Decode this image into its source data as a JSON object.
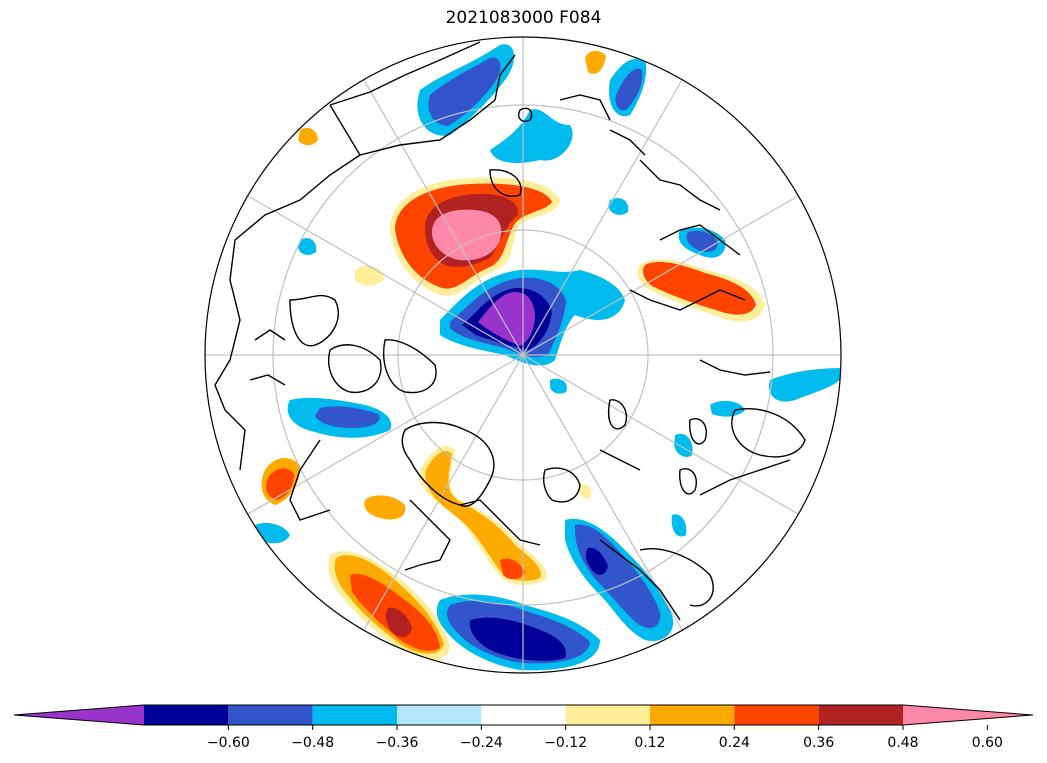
{
  "title": "2021083000 F084",
  "projection": "north-polar-stereographic",
  "colorbar": {
    "extend": "both",
    "bins": [
      {
        "color": "#9933cc"
      },
      {
        "color": "#000099"
      },
      {
        "color": "#3355cc"
      },
      {
        "color": "#00bbee"
      },
      {
        "color": "#b3e5fc"
      },
      {
        "color": "#ffffff"
      },
      {
        "color": "#ffee99"
      },
      {
        "color": "#ffaa00"
      },
      {
        "color": "#ff4400"
      },
      {
        "color": "#b22222"
      },
      {
        "color": "#ff88aa"
      }
    ],
    "tick_labels": [
      "−0.60",
      "−0.48",
      "−0.36",
      "−0.24",
      "−0.12",
      "0.12",
      "0.24",
      "0.36",
      "0.48",
      "0.60"
    ]
  },
  "colors": {
    "graticule": "#c0c0c0",
    "coastline": "#000000"
  }
}
